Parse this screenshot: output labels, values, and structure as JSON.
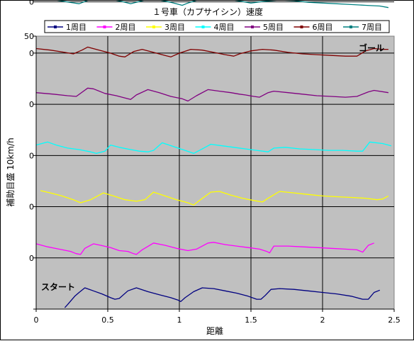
{
  "chart_data": {
    "type": "line",
    "title": "１号車（カプサイシン）速度",
    "xlabel": "距離",
    "ylabel": "補助目盛 10km/h",
    "xlim": [
      0,
      2.5
    ],
    "x_ticks": [
      "0",
      "0.5",
      "1",
      "1.5",
      "2",
      "2.5"
    ],
    "ylim": [
      0,
      50
    ],
    "y_tick_labels": [
      "50",
      "0",
      "0",
      "0",
      "0",
      "0",
      "0",
      "0"
    ],
    "grid": true,
    "legend_position": "top",
    "annotations": {
      "goal": "ゴール",
      "start": "スタート"
    },
    "series": [
      {
        "name": "1周目",
        "color": "#000080",
        "offset": 0,
        "points": [
          [
            0.2,
            2
          ],
          [
            0.22,
            6
          ],
          [
            0.27,
            17
          ],
          [
            0.3,
            22
          ],
          [
            0.34,
            28
          ],
          [
            0.4,
            24
          ],
          [
            0.46,
            20
          ],
          [
            0.52,
            15
          ],
          [
            0.55,
            13
          ],
          [
            0.58,
            14
          ],
          [
            0.64,
            24
          ],
          [
            0.7,
            28
          ],
          [
            0.78,
            23
          ],
          [
            0.86,
            19
          ],
          [
            0.94,
            15
          ],
          [
            0.99,
            12
          ],
          [
            1.01,
            10
          ],
          [
            1.04,
            15
          ],
          [
            1.1,
            23
          ],
          [
            1.16,
            28
          ],
          [
            1.24,
            27
          ],
          [
            1.32,
            24
          ],
          [
            1.4,
            21
          ],
          [
            1.48,
            17
          ],
          [
            1.54,
            13
          ],
          [
            1.57,
            13
          ],
          [
            1.6,
            18
          ],
          [
            1.64,
            26
          ],
          [
            1.7,
            27
          ],
          [
            1.8,
            26
          ],
          [
            1.9,
            24
          ],
          [
            2.0,
            22
          ],
          [
            2.1,
            20
          ],
          [
            2.2,
            17
          ],
          [
            2.28,
            13
          ],
          [
            2.32,
            13
          ],
          [
            2.36,
            22
          ],
          [
            2.4,
            25
          ]
        ]
      },
      {
        "name": "2周目",
        "color": "#FF00FF",
        "offset": 67.5,
        "points": [
          [
            0,
            23
          ],
          [
            0.08,
            19
          ],
          [
            0.16,
            16
          ],
          [
            0.24,
            13
          ],
          [
            0.28,
            10
          ],
          [
            0.31,
            9
          ],
          [
            0.34,
            17
          ],
          [
            0.4,
            23
          ],
          [
            0.45,
            21
          ],
          [
            0.52,
            18
          ],
          [
            0.58,
            14
          ],
          [
            0.64,
            13
          ],
          [
            0.68,
            10
          ],
          [
            0.7,
            9
          ],
          [
            0.74,
            15
          ],
          [
            0.82,
            24
          ],
          [
            0.9,
            21
          ],
          [
            0.98,
            17
          ],
          [
            1.06,
            14
          ],
          [
            1.12,
            16
          ],
          [
            1.2,
            24
          ],
          [
            1.24,
            25
          ],
          [
            1.32,
            22
          ],
          [
            1.4,
            20
          ],
          [
            1.48,
            18
          ],
          [
            1.56,
            16
          ],
          [
            1.61,
            13
          ],
          [
            1.63,
            11
          ],
          [
            1.66,
            20
          ],
          [
            1.76,
            20
          ],
          [
            1.86,
            19
          ],
          [
            1.96,
            18
          ],
          [
            2.06,
            17
          ],
          [
            2.16,
            16
          ],
          [
            2.24,
            15
          ],
          [
            2.28,
            12
          ],
          [
            2.32,
            21
          ],
          [
            2.36,
            24
          ]
        ]
      },
      {
        "name": "3周目",
        "color": "#FFFF00",
        "offset": 135,
        "points": [
          [
            0.03,
            30
          ],
          [
            0.1,
            27
          ],
          [
            0.18,
            23
          ],
          [
            0.26,
            18
          ],
          [
            0.31,
            14
          ],
          [
            0.38,
            18
          ],
          [
            0.47,
            27
          ],
          [
            0.54,
            23
          ],
          [
            0.62,
            18
          ],
          [
            0.7,
            16
          ],
          [
            0.76,
            18
          ],
          [
            0.82,
            28
          ],
          [
            0.9,
            23
          ],
          [
            0.98,
            18
          ],
          [
            1.06,
            14
          ],
          [
            1.1,
            11
          ],
          [
            1.14,
            17
          ],
          [
            1.22,
            28
          ],
          [
            1.28,
            29
          ],
          [
            1.36,
            24
          ],
          [
            1.44,
            20
          ],
          [
            1.52,
            17
          ],
          [
            1.58,
            15
          ],
          [
            1.62,
            20
          ],
          [
            1.7,
            29
          ],
          [
            1.8,
            27
          ],
          [
            1.9,
            25
          ],
          [
            2.0,
            23
          ],
          [
            2.1,
            22
          ],
          [
            2.2,
            21
          ],
          [
            2.3,
            20
          ],
          [
            2.38,
            18
          ],
          [
            2.42,
            19
          ],
          [
            2.46,
            23
          ]
        ]
      },
      {
        "name": "4周目",
        "color": "#00FFFF",
        "offset": 202.5,
        "points": [
          [
            0,
            27
          ],
          [
            0.08,
            31
          ],
          [
            0.14,
            27
          ],
          [
            0.22,
            23
          ],
          [
            0.3,
            21
          ],
          [
            0.38,
            18
          ],
          [
            0.42,
            16
          ],
          [
            0.48,
            19
          ],
          [
            0.52,
            27
          ],
          [
            0.58,
            24
          ],
          [
            0.66,
            21
          ],
          [
            0.72,
            19
          ],
          [
            0.78,
            18
          ],
          [
            0.82,
            20
          ],
          [
            0.88,
            30
          ],
          [
            0.96,
            25
          ],
          [
            1.04,
            20
          ],
          [
            1.1,
            16
          ],
          [
            1.18,
            24
          ],
          [
            1.22,
            28
          ],
          [
            1.3,
            26
          ],
          [
            1.38,
            24
          ],
          [
            1.46,
            22
          ],
          [
            1.54,
            20
          ],
          [
            1.62,
            18
          ],
          [
            1.66,
            23
          ],
          [
            1.74,
            24
          ],
          [
            1.84,
            22
          ],
          [
            1.94,
            21
          ],
          [
            2.04,
            20
          ],
          [
            2.14,
            20
          ],
          [
            2.24,
            19
          ],
          [
            2.28,
            19
          ],
          [
            2.33,
            31
          ],
          [
            2.42,
            29
          ],
          [
            2.48,
            26
          ]
        ]
      },
      {
        "name": "5周目",
        "color": "#800080",
        "offset": 270,
        "points": [
          [
            0,
            33
          ],
          [
            0.12,
            31
          ],
          [
            0.22,
            29
          ],
          [
            0.28,
            28
          ],
          [
            0.36,
            39
          ],
          [
            0.4,
            38
          ],
          [
            0.48,
            32
          ],
          [
            0.56,
            29
          ],
          [
            0.64,
            25
          ],
          [
            0.66,
            24
          ],
          [
            0.7,
            30
          ],
          [
            0.78,
            37
          ],
          [
            0.86,
            33
          ],
          [
            0.94,
            28
          ],
          [
            1.02,
            25
          ],
          [
            1.06,
            22
          ],
          [
            1.12,
            29
          ],
          [
            1.2,
            37
          ],
          [
            1.28,
            35
          ],
          [
            1.36,
            33
          ],
          [
            1.42,
            31
          ],
          [
            1.46,
            30
          ],
          [
            1.52,
            28
          ],
          [
            1.56,
            27
          ],
          [
            1.62,
            33
          ],
          [
            1.66,
            35
          ],
          [
            1.76,
            33
          ],
          [
            1.86,
            31
          ],
          [
            1.96,
            29
          ],
          [
            2.06,
            28
          ],
          [
            2.16,
            27
          ],
          [
            2.24,
            28
          ],
          [
            2.32,
            34
          ],
          [
            2.36,
            36
          ],
          [
            2.46,
            33
          ]
        ]
      },
      {
        "name": "6周目",
        "color": "#800000",
        "offset": 337.5,
        "points": [
          [
            0,
            28
          ],
          [
            0.1,
            26
          ],
          [
            0.2,
            23
          ],
          [
            0.26,
            21
          ],
          [
            0.32,
            26
          ],
          [
            0.36,
            30
          ],
          [
            0.44,
            26
          ],
          [
            0.52,
            22
          ],
          [
            0.58,
            18
          ],
          [
            0.62,
            17
          ],
          [
            0.68,
            24
          ],
          [
            0.74,
            27
          ],
          [
            0.82,
            23
          ],
          [
            0.9,
            19
          ],
          [
            0.94,
            17
          ],
          [
            1.0,
            22
          ],
          [
            1.08,
            27
          ],
          [
            1.16,
            26
          ],
          [
            1.24,
            23
          ],
          [
            1.32,
            20
          ],
          [
            1.38,
            18
          ],
          [
            1.42,
            21
          ],
          [
            1.5,
            25
          ],
          [
            1.58,
            27
          ],
          [
            1.66,
            26
          ],
          [
            1.76,
            23
          ],
          [
            1.86,
            21
          ],
          [
            1.96,
            20
          ],
          [
            2.06,
            19
          ],
          [
            2.16,
            18
          ],
          [
            2.24,
            18
          ],
          [
            2.3,
            25
          ],
          [
            2.36,
            28
          ],
          [
            2.42,
            27
          ],
          [
            2.46,
            27
          ]
        ]
      },
      {
        "name": "7周目",
        "color": "#008080",
        "offset": 405,
        "points": [
          [
            0,
            32
          ],
          [
            0.1,
            30
          ],
          [
            0.2,
            27
          ],
          [
            0.3,
            24
          ],
          [
            0.38,
            30
          ],
          [
            0.44,
            33
          ],
          [
            0.52,
            30
          ],
          [
            0.6,
            27
          ],
          [
            0.66,
            24
          ],
          [
            0.72,
            27
          ],
          [
            0.8,
            31
          ],
          [
            0.86,
            29
          ],
          [
            0.94,
            26
          ],
          [
            1.02,
            22
          ],
          [
            1.06,
            25
          ],
          [
            1.16,
            31
          ],
          [
            1.24,
            32
          ],
          [
            1.34,
            30
          ],
          [
            1.44,
            27
          ],
          [
            1.5,
            25
          ],
          [
            1.58,
            27
          ],
          [
            1.7,
            29
          ],
          [
            1.8,
            28
          ],
          [
            1.9,
            26
          ],
          [
            2.0,
            25
          ],
          [
            2.1,
            24
          ],
          [
            2.2,
            23
          ],
          [
            2.3,
            22
          ],
          [
            2.4,
            21
          ],
          [
            2.46,
            19
          ]
        ]
      }
    ]
  }
}
